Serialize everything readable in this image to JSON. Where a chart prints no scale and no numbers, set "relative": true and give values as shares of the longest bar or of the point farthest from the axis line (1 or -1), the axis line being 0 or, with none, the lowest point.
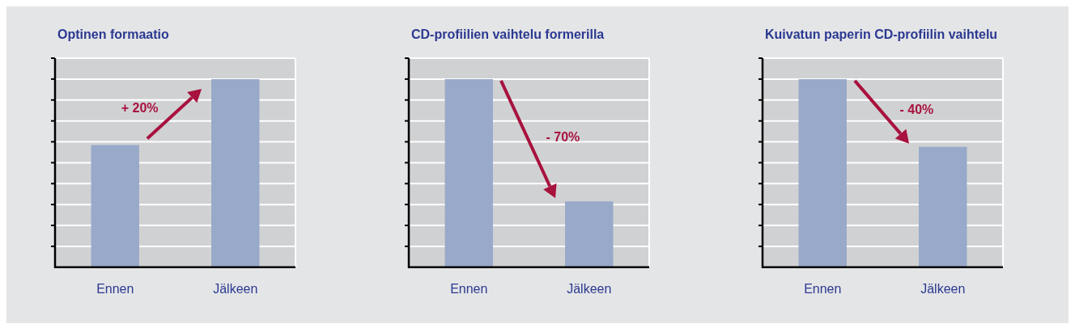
{
  "chart_data": [
    {
      "type": "bar",
      "title": "Optinen formaatio",
      "categories": [
        "Ennen",
        "Jälkeen"
      ],
      "values": [
        0.65,
        1
      ],
      "color": "#98a9c9",
      "relative": true,
      "grid": true,
      "tick_labels": "x",
      "annotations": [
        "+ 20%"
      ]
    },
    {
      "type": "bar",
      "title": "CD-profiilien vaihtelu formerilla",
      "categories": [
        "Ennen",
        "Jälkeen"
      ],
      "values": [
        1,
        0.35
      ],
      "color": "#98a9c9",
      "relative": true,
      "grid": true,
      "tick_labels": "x",
      "annotations": [
        "- 70%"
      ]
    },
    {
      "type": "bar",
      "title": "Kuivatun paperin CD-profiilin vaihtelu",
      "categories": [
        "Ennen",
        "Jälkeen"
      ],
      "values": [
        1,
        0.64
      ],
      "color": "#98a9c9",
      "relative": true,
      "grid": true,
      "tick_labels": "x",
      "annotations": [
        "- 40%"
      ]
    }
  ]
}
